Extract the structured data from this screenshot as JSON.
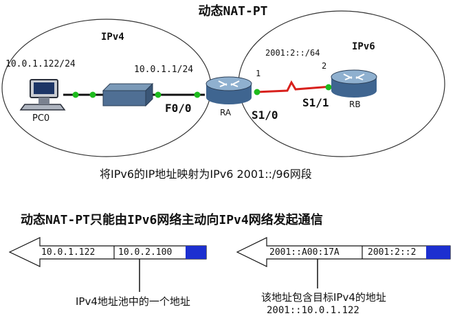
{
  "title": "动态NAT-PT",
  "network": {
    "ipv4_zone": "IPv4",
    "ipv6_zone": "IPv6",
    "pc_ip": "10.0.1.122/24",
    "gateway_ip": "10.0.1.1/24",
    "ipv6_net": "2001:2::/64",
    "link_end_1": "1",
    "link_end_2": "2",
    "pc_name": "PC0",
    "router_a": "RA",
    "router_b": "RB",
    "if_f00": "F0/0",
    "if_s10": "S1/0",
    "if_s11": "S1/1"
  },
  "mapping_caption": "将IPv6的IP地址映射为IPv6  2001::/96网段",
  "headline": "动态NAT-PT只能由IPv6网络主动向IPv4网络发起通信",
  "left_packet": {
    "dst": "10.0.1.122",
    "src": "10.0.2.100",
    "note": "IPv4地址池中的一个地址"
  },
  "right_packet": {
    "dst": "2001::A00:17A",
    "src": "2001:2::2",
    "note_line1": "该地址包含目标IPv4的地址",
    "note_line2": "2001::10.0.1.122"
  },
  "colors": {
    "blue_bar": "#1c2fd0",
    "red_link": "#d8201c",
    "green_port": "#1dbb1d"
  }
}
